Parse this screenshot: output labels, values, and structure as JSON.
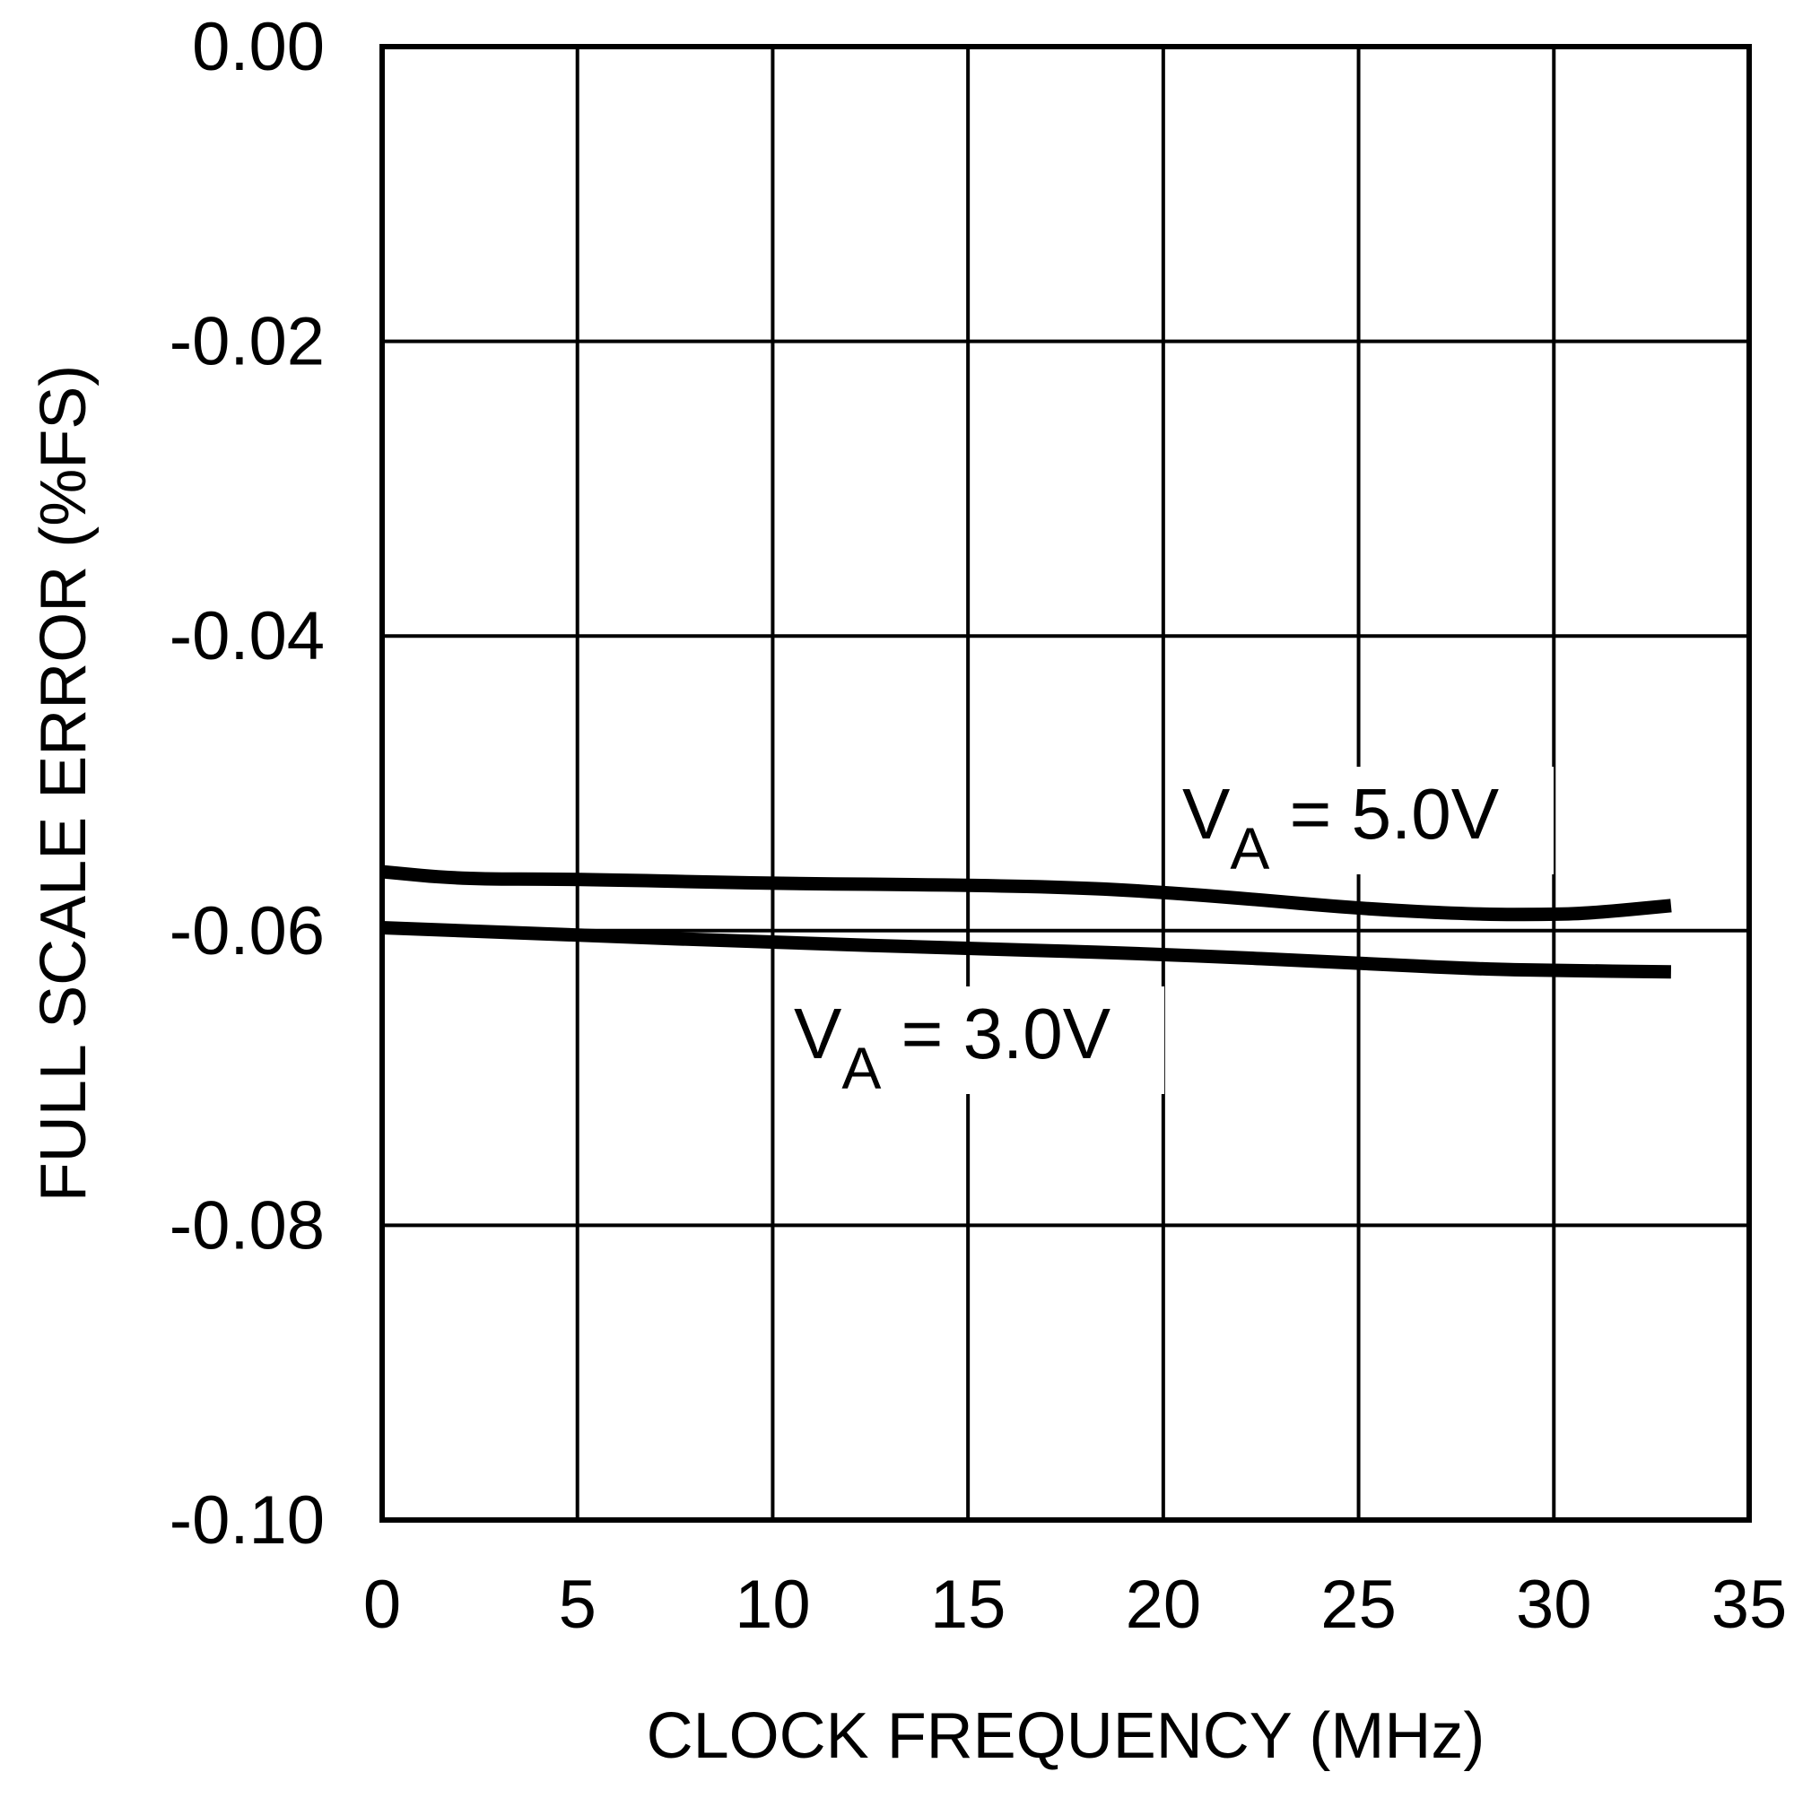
{
  "chart_data": {
    "type": "line",
    "title": "",
    "xlabel": "CLOCK FREQUENCY (MHz)",
    "ylabel": "FULL SCALE ERROR (%FS)",
    "xlim": [
      0,
      35
    ],
    "ylim": [
      -0.1,
      0.0
    ],
    "x_ticks": [
      0,
      5,
      10,
      15,
      20,
      25,
      30,
      35
    ],
    "x_tick_labels": [
      "0",
      "5",
      "10",
      "15",
      "20",
      "25",
      "30",
      "35"
    ],
    "y_ticks": [
      0.0,
      -0.02,
      -0.04,
      -0.06,
      -0.08,
      -0.1
    ],
    "y_tick_labels": [
      "0.00",
      "-0.02",
      "-0.04",
      "-0.06",
      "-0.08",
      "-0.10"
    ],
    "grid": true,
    "legend_position": "inline annotations",
    "series": [
      {
        "name": "VA = 5.0V",
        "label_main": "V",
        "label_sub": "A",
        "label_rest": " = 5.0V",
        "x": [
          0,
          2,
          5,
          10,
          15,
          18,
          20,
          22,
          25,
          28,
          30,
          31,
          33
        ],
        "y": [
          -0.056,
          -0.0565,
          -0.0565,
          -0.0568,
          -0.0569,
          -0.0571,
          -0.0574,
          -0.0578,
          -0.0585,
          -0.0589,
          -0.0589,
          -0.0588,
          -0.0583
        ]
      },
      {
        "name": "VA = 3.0V",
        "label_main": "V",
        "label_sub": "A",
        "label_rest": " = 3.0V",
        "x": [
          0,
          5,
          10,
          15,
          20,
          25,
          28,
          30,
          33
        ],
        "y": [
          -0.0598,
          -0.0603,
          -0.0608,
          -0.0612,
          -0.0616,
          -0.0622,
          -0.0626,
          -0.0627,
          -0.0628
        ]
      }
    ]
  }
}
